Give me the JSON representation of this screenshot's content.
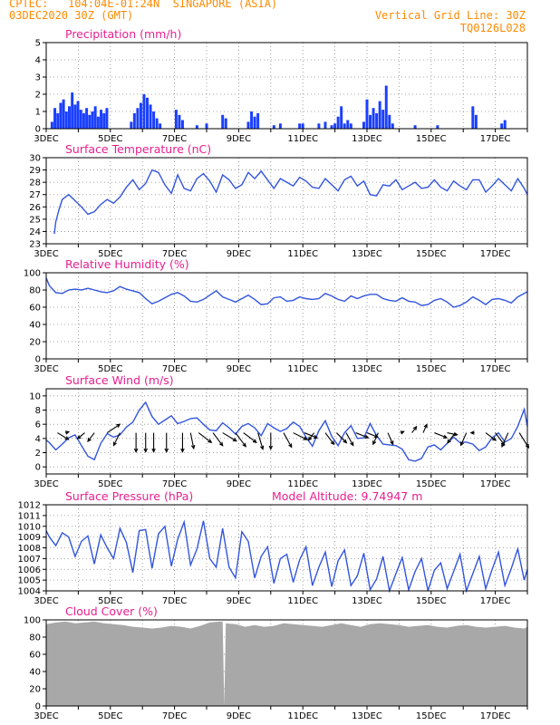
{
  "header": {
    "line1": "CPTEC:   104:04E-01:24N  SINGAPORE (ASIA)",
    "line2": "03DEC2020 30Z (GMT)",
    "grid_note": "Vertical Grid Line: 30Z",
    "run_code": "TQ0126L028",
    "model_altitude": "Model Altitude: 9.74947 m"
  },
  "x_axis": {
    "start": "2020-12-03T06:00Z",
    "end": "2020-12-18T00:00Z",
    "tick_labels": [
      "3DEC",
      "5DEC",
      "7DEC",
      "9DEC",
      "11DEC",
      "13DEC",
      "15DEC",
      "17DEC"
    ]
  },
  "colors": {
    "line": "#3355dd",
    "bar": "#1a3fff",
    "cloud": "#a8a8a8",
    "title": "#e81f8f"
  },
  "chart_data": [
    {
      "type": "bar",
      "title": "Precipitation (mm/h)",
      "ylim": [
        0,
        5
      ],
      "yticks": [
        0,
        1,
        2,
        3,
        4,
        5
      ],
      "days": [
        3.18,
        3.27,
        3.36,
        3.45,
        3.54,
        3.63,
        3.72,
        3.81,
        3.9,
        3.99,
        4.08,
        4.17,
        4.26,
        4.35,
        4.44,
        4.53,
        4.62,
        4.71,
        4.8,
        4.89,
        5.65,
        5.75,
        5.85,
        5.95,
        6.05,
        6.15,
        6.25,
        6.35,
        6.45,
        6.55,
        7.05,
        7.15,
        7.25,
        7.7,
        8.0,
        8.5,
        8.6,
        9.3,
        9.4,
        9.5,
        9.6,
        10.1,
        10.3,
        10.9,
        11.0,
        11.5,
        11.7,
        11.9,
        12.0,
        12.1,
        12.2,
        12.3,
        12.4,
        12.5,
        12.9,
        13.0,
        13.1,
        13.2,
        13.3,
        13.4,
        13.5,
        13.6,
        13.7,
        13.8,
        14.5,
        15.2,
        16.3,
        16.4,
        17.2,
        17.3
      ],
      "values": [
        0.4,
        1.2,
        0.9,
        1.5,
        1.7,
        1.0,
        1.3,
        2.1,
        1.4,
        1.6,
        1.1,
        0.9,
        1.2,
        0.8,
        1.0,
        1.3,
        0.7,
        1.1,
        0.9,
        1.2,
        0.4,
        0.9,
        1.2,
        1.5,
        2.0,
        1.8,
        1.4,
        1.0,
        0.6,
        0.3,
        1.1,
        0.8,
        0.5,
        0.2,
        0.3,
        0.8,
        0.6,
        0.4,
        1.0,
        0.7,
        0.9,
        0.2,
        0.3,
        0.3,
        0.3,
        0.3,
        0.4,
        0.2,
        0.3,
        0.7,
        1.3,
        0.3,
        0.5,
        0.3,
        0.4,
        1.7,
        0.8,
        1.2,
        0.9,
        1.6,
        1.1,
        2.5,
        0.8,
        0.3,
        0.2,
        0.2,
        1.3,
        0.8,
        0.3,
        0.5
      ]
    },
    {
      "type": "line",
      "title": "Surface Temperature (nC)",
      "ylim": [
        23,
        30
      ],
      "yticks": [
        23,
        24,
        25,
        26,
        27,
        28,
        29,
        30
      ],
      "x": [
        3.25,
        3.3,
        3.4,
        3.5,
        3.7,
        3.9,
        4.1,
        4.3,
        4.5,
        4.7,
        4.9,
        5.1,
        5.3,
        5.5,
        5.7,
        5.9,
        6.1,
        6.3,
        6.5,
        6.7,
        6.9,
        7.1,
        7.3,
        7.5,
        7.7,
        7.9,
        8.1,
        8.3,
        8.5,
        8.7,
        8.9,
        9.1,
        9.3,
        9.5,
        9.7,
        9.9,
        10.1,
        10.3,
        10.5,
        10.7,
        10.9,
        11.1,
        11.3,
        11.5,
        11.7,
        11.9,
        12.1,
        12.3,
        12.5,
        12.7,
        12.9,
        13.1,
        13.3,
        13.5,
        13.7,
        13.9,
        14.1,
        14.3,
        14.5,
        14.7,
        14.9,
        15.1,
        15.3,
        15.5,
        15.7,
        15.9,
        16.1,
        16.3,
        16.5,
        16.7,
        16.9,
        17.1,
        17.3,
        17.5,
        17.7,
        17.9,
        18.0
      ],
      "y": [
        23.8,
        24.8,
        25.8,
        26.6,
        27.0,
        26.5,
        26.0,
        25.4,
        25.6,
        26.2,
        26.6,
        26.3,
        26.8,
        27.6,
        28.2,
        27.4,
        27.9,
        29.0,
        28.8,
        27.8,
        27.1,
        28.6,
        27.5,
        27.3,
        28.3,
        28.7,
        28.1,
        27.2,
        28.6,
        28.2,
        27.5,
        27.8,
        28.8,
        28.3,
        28.9,
        28.2,
        27.5,
        28.3,
        28.0,
        27.7,
        28.4,
        28.1,
        27.6,
        27.5,
        28.3,
        27.8,
        27.3,
        28.2,
        28.5,
        27.7,
        28.1,
        27.0,
        26.9,
        27.8,
        27.7,
        28.2,
        27.4,
        27.7,
        28.0,
        27.5,
        27.6,
        28.2,
        27.6,
        27.3,
        28.1,
        27.7,
        27.4,
        28.2,
        28.2,
        27.2,
        27.7,
        28.3,
        27.8,
        27.3,
        28.3,
        27.5,
        27.0
      ]
    },
    {
      "type": "line",
      "title": "Relative Humidity (%)",
      "ylim": [
        0,
        100
      ],
      "yticks": [
        0,
        20,
        40,
        60,
        80,
        100
      ],
      "x": [
        3.0,
        3.1,
        3.3,
        3.5,
        3.7,
        3.9,
        4.1,
        4.3,
        4.5,
        4.7,
        4.9,
        5.1,
        5.3,
        5.5,
        5.7,
        5.9,
        6.1,
        6.3,
        6.5,
        6.7,
        6.9,
        7.1,
        7.3,
        7.5,
        7.7,
        7.9,
        8.1,
        8.3,
        8.5,
        8.7,
        8.9,
        9.1,
        9.3,
        9.5,
        9.7,
        9.9,
        10.1,
        10.3,
        10.5,
        10.7,
        10.9,
        11.1,
        11.3,
        11.5,
        11.7,
        11.9,
        12.1,
        12.3,
        12.5,
        12.7,
        12.9,
        13.1,
        13.3,
        13.5,
        13.7,
        13.9,
        14.1,
        14.3,
        14.5,
        14.7,
        14.9,
        15.1,
        15.3,
        15.5,
        15.7,
        15.9,
        16.1,
        16.3,
        16.5,
        16.7,
        16.9,
        17.1,
        17.3,
        17.5,
        17.7,
        17.9,
        18.0
      ],
      "y": [
        94,
        85,
        77,
        76,
        80,
        81,
        80,
        82,
        80,
        78,
        77,
        79,
        84,
        81,
        79,
        77,
        70,
        64,
        67,
        71,
        75,
        77,
        73,
        67,
        66,
        69,
        74,
        79,
        72,
        69,
        66,
        70,
        74,
        69,
        63,
        64,
        71,
        72,
        67,
        68,
        72,
        70,
        69,
        70,
        76,
        73,
        69,
        67,
        73,
        70,
        73,
        75,
        75,
        70,
        68,
        67,
        71,
        67,
        66,
        62,
        63,
        68,
        70,
        66,
        60,
        62,
        66,
        72,
        68,
        63,
        69,
        70,
        68,
        65,
        72,
        76,
        78
      ]
    },
    {
      "type": "line",
      "title": "Surface Wind (m/s)",
      "ylim": [
        -1,
        11
      ],
      "yticks": [
        0,
        2,
        4,
        6,
        8,
        10
      ],
      "x": [
        3.0,
        3.1,
        3.3,
        3.5,
        3.7,
        3.9,
        4.1,
        4.3,
        4.5,
        4.7,
        4.9,
        5.1,
        5.3,
        5.5,
        5.7,
        5.9,
        6.1,
        6.3,
        6.5,
        6.7,
        6.9,
        7.1,
        7.3,
        7.5,
        7.7,
        7.9,
        8.1,
        8.3,
        8.5,
        8.7,
        8.9,
        9.1,
        9.3,
        9.5,
        9.7,
        9.9,
        10.1,
        10.3,
        10.5,
        10.7,
        10.9,
        11.1,
        11.3,
        11.5,
        11.7,
        11.9,
        12.1,
        12.3,
        12.5,
        12.7,
        12.9,
        13.1,
        13.3,
        13.5,
        13.7,
        13.9,
        14.1,
        14.3,
        14.5,
        14.7,
        14.9,
        15.1,
        15.3,
        15.5,
        15.7,
        15.9,
        16.1,
        16.3,
        16.5,
        16.7,
        16.9,
        17.1,
        17.3,
        17.5,
        17.7,
        17.9,
        18.0
      ],
      "y": [
        3.8,
        3.4,
        2.4,
        3.2,
        4.1,
        4.5,
        3.0,
        1.5,
        1.0,
        3.3,
        4.7,
        4.2,
        4.5,
        5.6,
        6.3,
        8.0,
        9.1,
        7.1,
        6.0,
        6.6,
        7.2,
        6.1,
        6.4,
        6.8,
        6.9,
        6.0,
        5.2,
        5.1,
        6.2,
        5.5,
        4.6,
        5.7,
        6.1,
        5.5,
        4.4,
        6.1,
        5.5,
        5.0,
        5.4,
        6.3,
        5.7,
        4.2,
        2.9,
        5.1,
        6.5,
        4.3,
        3.0,
        4.8,
        5.8,
        4.0,
        4.1,
        6.1,
        4.4,
        3.2,
        3.1,
        3.0,
        2.5,
        1.0,
        0.8,
        1.2,
        2.8,
        3.1,
        2.4,
        3.3,
        4.2,
        3.4,
        3.5,
        3.2,
        2.3,
        2.8,
        4.1,
        4.8,
        3.5,
        4.0,
        5.7,
        8.1,
        5.7
      ],
      "arrows": {
        "x": [
          3.35,
          3.6,
          4.2,
          4.5,
          4.9,
          5.3,
          5.8,
          6.1,
          6.35,
          6.75,
          7.25,
          7.5,
          7.75,
          8.2,
          8.5,
          8.9,
          9.15,
          9.6,
          10.0,
          10.4,
          10.7,
          11.05,
          11.35,
          11.7,
          12.05,
          12.35,
          12.65,
          13.0,
          13.35,
          13.65,
          14.05,
          14.4,
          14.75,
          15.1,
          15.5,
          15.75,
          16.1,
          16.35,
          16.7,
          17.0,
          17.4,
          17.75
        ],
        "u": [
          1.0,
          1.0,
          -0.6,
          -0.6,
          1.2,
          -0.4,
          0.0,
          0.0,
          0.0,
          0.0,
          0.0,
          0.2,
          0.8,
          0.6,
          1.0,
          0.6,
          0.8,
          0.3,
          0.0,
          0.5,
          1.0,
          1.0,
          -0.6,
          0.6,
          0.7,
          0.5,
          1.0,
          1.0,
          -0.4,
          0.4,
          0.8,
          0.6,
          0.4,
          1.0,
          1.0,
          -0.6,
          -0.4,
          -1.0,
          0.8,
          0.6,
          -0.4,
          0.5
        ],
        "v": [
          -0.6,
          0.3,
          -0.5,
          -0.8,
          0.8,
          -0.8,
          -1.0,
          -1.0,
          -1.0,
          -1.0,
          -1.0,
          -1.0,
          -0.6,
          -0.8,
          -0.6,
          -0.8,
          -0.6,
          -1.0,
          -1.0,
          -0.9,
          -0.5,
          -0.4,
          -0.8,
          -0.8,
          -0.7,
          -0.9,
          -0.4,
          -0.4,
          -0.9,
          -0.9,
          0.3,
          0.8,
          0.9,
          -0.4,
          -0.2,
          -0.8,
          -0.9,
          0.0,
          -0.6,
          -0.8,
          -0.9,
          -0.8
        ],
        "len": [
          3.4,
          0.9,
          2.4,
          2.8,
          4.0,
          3.7,
          5.0,
          5.0,
          5.0,
          5.0,
          5.0,
          4.2,
          4.2,
          4.2,
          4.2,
          4.5,
          4.2,
          4.5,
          4.3,
          4.3,
          4.0,
          3.6,
          2.4,
          3.8,
          3.7,
          3.8,
          3.5,
          3.0,
          3.3,
          3.3,
          0.9,
          2.0,
          2.4,
          3.5,
          2.7,
          3.3,
          3.6,
          0.9,
          3.3,
          4.0,
          4.0,
          4.6
        ]
      }
    },
    {
      "type": "line",
      "title": "Surface Pressure (hPa)",
      "ylim": [
        1004,
        1012
      ],
      "yticks": [
        1004,
        1005,
        1006,
        1007,
        1008,
        1009,
        1010,
        1011,
        1012
      ],
      "x": [
        3.0,
        3.1,
        3.3,
        3.5,
        3.7,
        3.9,
        4.1,
        4.3,
        4.5,
        4.7,
        4.9,
        5.1,
        5.3,
        5.5,
        5.7,
        5.9,
        6.1,
        6.3,
        6.5,
        6.7,
        6.9,
        7.1,
        7.3,
        7.5,
        7.7,
        7.9,
        8.1,
        8.3,
        8.5,
        8.7,
        8.9,
        9.1,
        9.3,
        9.5,
        9.7,
        9.9,
        10.1,
        10.3,
        10.5,
        10.7,
        10.9,
        11.1,
        11.3,
        11.5,
        11.7,
        11.9,
        12.1,
        12.3,
        12.5,
        12.7,
        12.9,
        13.1,
        13.3,
        13.5,
        13.7,
        13.9,
        14.1,
        14.3,
        14.5,
        14.7,
        14.9,
        15.1,
        15.3,
        15.5,
        15.7,
        15.9,
        16.1,
        16.3,
        16.5,
        16.7,
        16.9,
        17.1,
        17.3,
        17.5,
        17.7,
        17.9,
        18.0
      ],
      "y": [
        1009.6,
        1009.0,
        1008.2,
        1009.4,
        1009.0,
        1007.2,
        1008.6,
        1009.1,
        1006.5,
        1009.2,
        1008.0,
        1007.0,
        1009.8,
        1008.5,
        1005.7,
        1009.6,
        1009.7,
        1006.1,
        1009.3,
        1010.0,
        1006.3,
        1008.8,
        1010.4,
        1006.4,
        1007.9,
        1010.5,
        1007.0,
        1006.2,
        1009.8,
        1006.2,
        1005.2,
        1009.5,
        1008.6,
        1005.2,
        1007.2,
        1008.1,
        1004.7,
        1007.0,
        1007.4,
        1004.8,
        1006.9,
        1008.1,
        1004.5,
        1006.2,
        1007.6,
        1004.4,
        1006.8,
        1007.8,
        1004.5,
        1005.4,
        1007.5,
        1004.1,
        1005.1,
        1007.2,
        1004.0,
        1005.6,
        1007.1,
        1004.1,
        1005.8,
        1007.0,
        1004.0,
        1005.9,
        1006.6,
        1004.2,
        1005.8,
        1007.4,
        1004.0,
        1005.6,
        1007.2,
        1004.2,
        1006.0,
        1007.6,
        1004.5,
        1006.1,
        1007.9,
        1005.0,
        1006.0
      ]
    },
    {
      "type": "area",
      "title": "Cloud Cover (%)",
      "ylim": [
        0,
        100
      ],
      "yticks": [
        0,
        20,
        40,
        60,
        80,
        100
      ],
      "x": [
        3.0,
        3.3,
        3.6,
        3.9,
        4.2,
        4.5,
        4.8,
        5.1,
        5.4,
        5.7,
        6.0,
        6.3,
        6.6,
        6.9,
        7.2,
        7.5,
        7.8,
        8.1,
        8.4,
        8.5,
        8.55,
        8.6,
        8.9,
        9.2,
        9.5,
        9.8,
        10.1,
        10.4,
        10.7,
        11.0,
        11.3,
        11.6,
        11.9,
        12.2,
        12.5,
        12.8,
        13.1,
        13.4,
        13.7,
        14.0,
        14.3,
        14.6,
        14.9,
        15.2,
        15.5,
        15.8,
        16.1,
        16.4,
        16.7,
        17.0,
        17.3,
        17.6,
        17.9,
        18.0
      ],
      "y": [
        95,
        97,
        98,
        96,
        97,
        98,
        96,
        95,
        94,
        92,
        91,
        90,
        91,
        93,
        92,
        90,
        93,
        97,
        98,
        98,
        0,
        96,
        95,
        92,
        94,
        92,
        93,
        96,
        95,
        94,
        93,
        92,
        94,
        96,
        94,
        92,
        95,
        96,
        95,
        94,
        92,
        93,
        94,
        92,
        91,
        93,
        94,
        92,
        91,
        92,
        93,
        91,
        90,
        92
      ]
    }
  ]
}
